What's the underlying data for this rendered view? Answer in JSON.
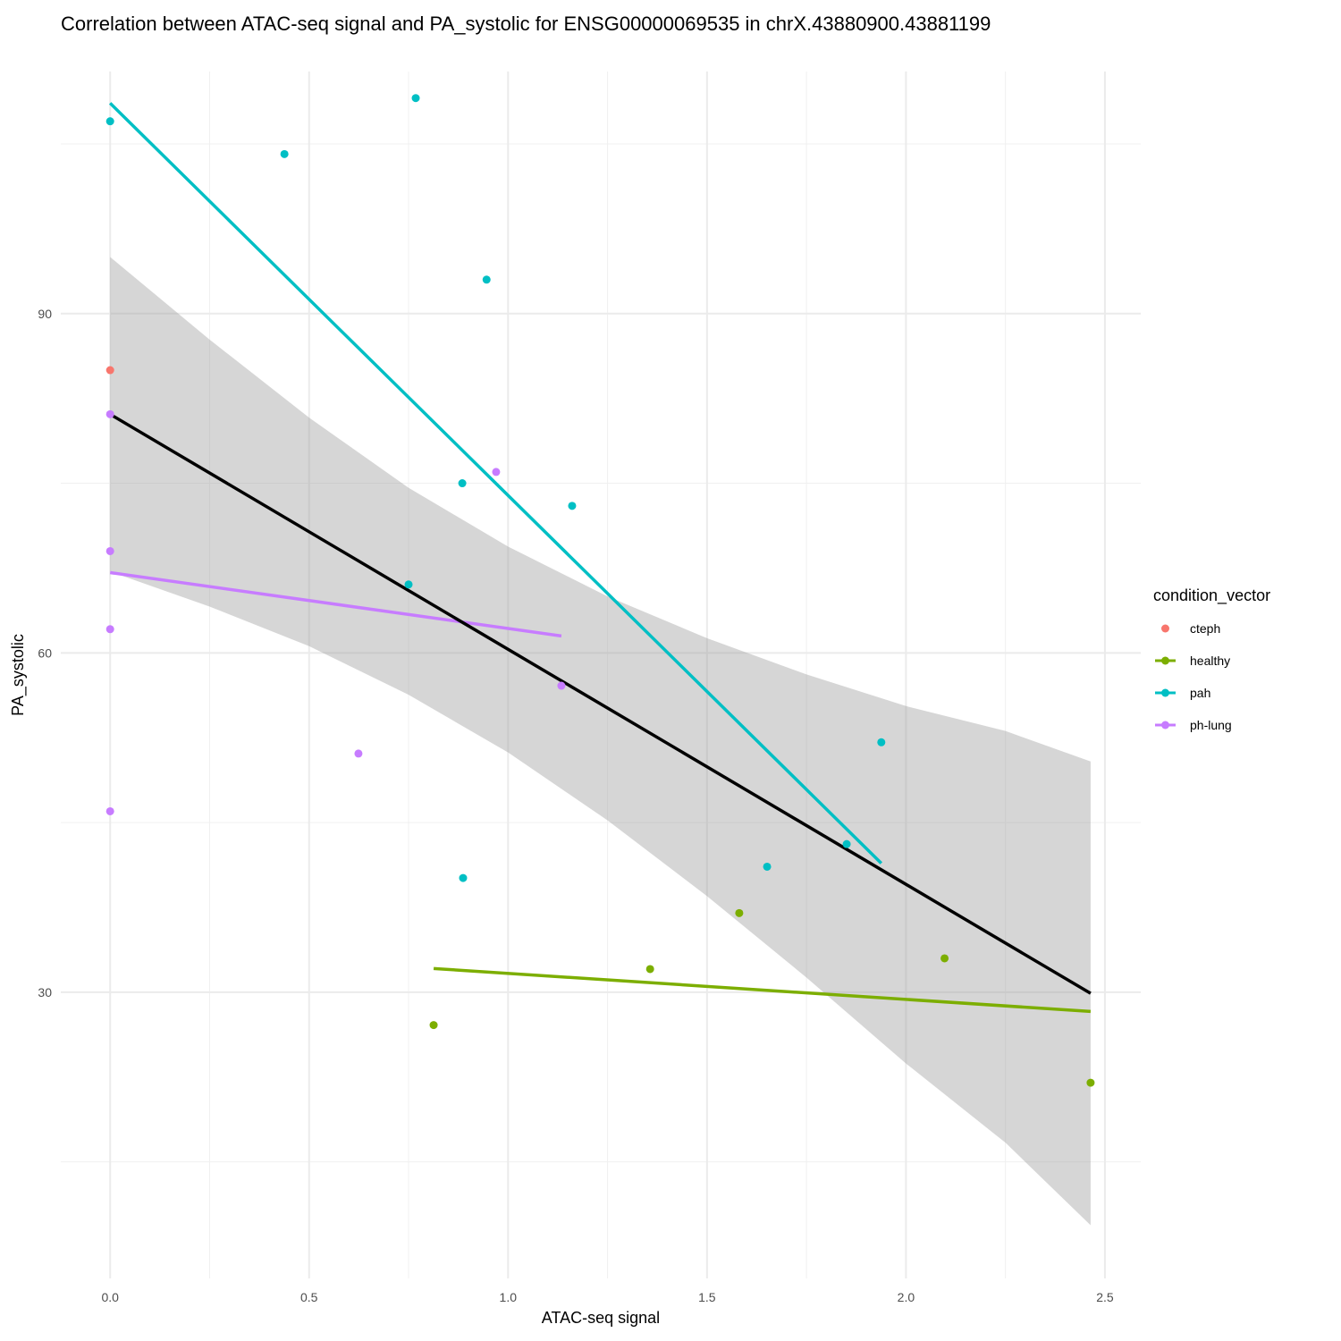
{
  "chart_data": {
    "type": "scatter",
    "title": "Correlation between ATAC-seq signal and PA_systolic for ENSG00000069535 in chrX.43880900.43881199",
    "xlabel": "ATAC-seq signal",
    "ylabel": "PA_systolic",
    "xlim": [
      -0.124,
      2.59
    ],
    "ylim": [
      4.7,
      111.4
    ],
    "xticks": [
      0.0,
      0.5,
      1.0,
      1.5,
      2.0,
      2.5
    ],
    "xtick_labels": [
      "0.0",
      "0.5",
      "1.0",
      "1.5",
      "2.0",
      "2.5"
    ],
    "xminor": [
      0.25,
      0.75,
      1.25,
      1.75,
      2.25
    ],
    "yticks": [
      30,
      60,
      90
    ],
    "ytick_labels": [
      "30",
      "60",
      "90"
    ],
    "yminor": [
      15,
      45,
      75,
      105
    ],
    "grid": true,
    "legend": {
      "title": "condition_vector",
      "placement": "right"
    },
    "series": [
      {
        "name": "cteph",
        "color": "#F8766D",
        "has_line": false,
        "points": [
          [
            0.0,
            85.0
          ]
        ]
      },
      {
        "name": "healthy",
        "color": "#7CAE00",
        "has_line": true,
        "points": [
          [
            1.581,
            37.0
          ],
          [
            1.357,
            32.05
          ],
          [
            2.097,
            33.0
          ],
          [
            0.813,
            27.1
          ],
          [
            2.464,
            22.0
          ]
        ],
        "fit": [
          [
            0.813,
            32.1
          ],
          [
            2.464,
            28.3
          ]
        ]
      },
      {
        "name": "pah",
        "color": "#00BFC4",
        "has_line": true,
        "points": [
          [
            0.0,
            107.0
          ],
          [
            0.768,
            109.05
          ],
          [
            0.438,
            104.1
          ],
          [
            0.946,
            93.0
          ],
          [
            0.885,
            75.0
          ],
          [
            1.161,
            73.0
          ],
          [
            0.75,
            66.05
          ],
          [
            1.938,
            52.1
          ],
          [
            1.851,
            43.1
          ],
          [
            1.651,
            41.1
          ],
          [
            0.887,
            40.1
          ]
        ],
        "fit": [
          [
            0.0,
            108.6
          ],
          [
            1.938,
            41.4
          ]
        ]
      },
      {
        "name": "ph-lung",
        "color": "#C77CFF",
        "has_line": true,
        "points": [
          [
            0.0,
            81.1
          ],
          [
            0.97,
            76.0
          ],
          [
            0.0,
            69.0
          ],
          [
            0.0,
            62.1
          ],
          [
            1.134,
            57.1
          ],
          [
            0.624,
            51.1
          ],
          [
            0.0,
            46.0
          ]
        ],
        "fit": [
          [
            0.0,
            67.1
          ],
          [
            1.134,
            61.5
          ]
        ]
      }
    ],
    "overall_fit": {
      "color": "#000000",
      "line": [
        [
          0.0,
          81.1
        ],
        [
          2.464,
          29.9
        ]
      ],
      "ribbon": [
        [
          0.0,
          67.2,
          95.0
        ],
        [
          0.25,
          64.1,
          87.7
        ],
        [
          0.5,
          60.6,
          80.8
        ],
        [
          0.75,
          56.3,
          74.6
        ],
        [
          1.0,
          51.2,
          69.4
        ],
        [
          1.25,
          45.2,
          65.0
        ],
        [
          1.5,
          38.5,
          61.3
        ],
        [
          1.75,
          31.3,
          58.1
        ],
        [
          2.0,
          23.7,
          55.3
        ],
        [
          2.25,
          16.7,
          53.1
        ],
        [
          2.464,
          9.4,
          50.4
        ]
      ]
    }
  }
}
